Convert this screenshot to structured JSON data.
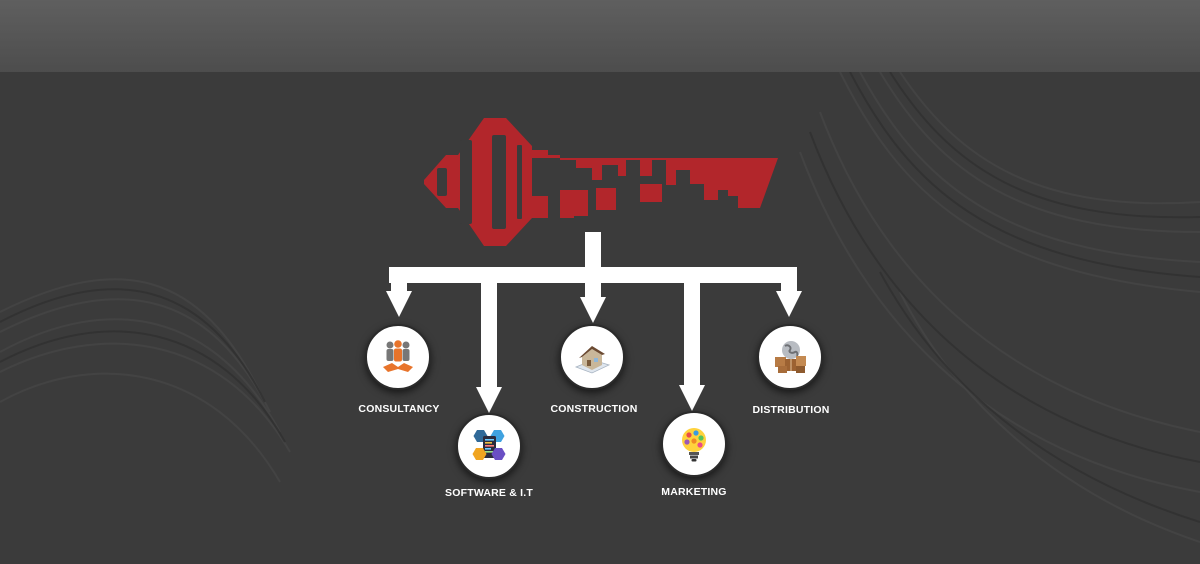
{
  "colors": {
    "key": "#b2262b",
    "connector": "#ffffff",
    "background": "#3b3b3b",
    "band": "#555555"
  },
  "logo": {
    "icon": "city-key-logo"
  },
  "divisions": [
    {
      "label": "CONSULTANCY",
      "icon": "handshake-team-icon"
    },
    {
      "label": "SOFTWARE & I.T",
      "icon": "programming-languages-icon"
    },
    {
      "label": "CONSTRUCTION",
      "icon": "house-blueprint-icon"
    },
    {
      "label": "MARKETING",
      "icon": "lightbulb-apps-icon"
    },
    {
      "label": "DISTRIBUTION",
      "icon": "globe-boxes-icon"
    }
  ]
}
